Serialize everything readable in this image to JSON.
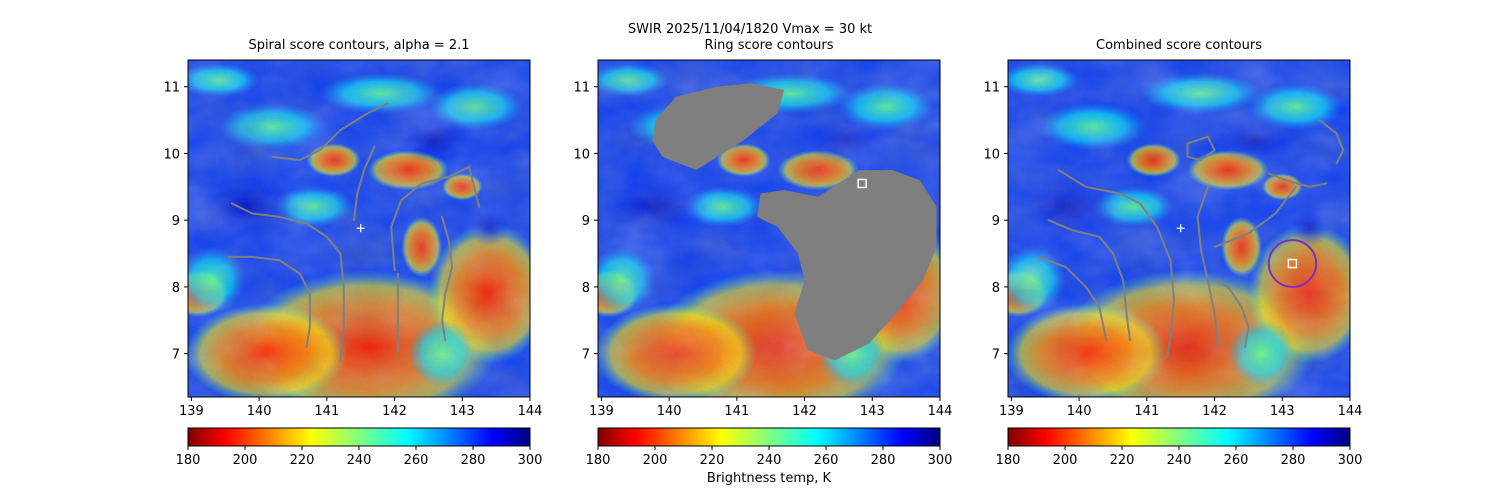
{
  "figure": {
    "suptitle": "SWIR  2025/11/04/1820    Vmax = 30 kt",
    "colorbar_label": "Brightness temp, K",
    "colors": {
      "contour": "#808080",
      "mask": "#7f7f7f",
      "center_marker": "#ffffff",
      "ring": "#7b2fbe"
    }
  },
  "chart_data": [
    {
      "type": "heatmap",
      "title": "Spiral score contours, alpha =  2.1",
      "xlim": [
        138.95,
        144.0
      ],
      "ylim": [
        6.35,
        11.4
      ],
      "xticks": [
        "139",
        "140",
        "141",
        "142",
        "143",
        "144"
      ],
      "yticks": [
        "7",
        "8",
        "9",
        "10",
        "11"
      ],
      "colorbar": {
        "min": 180,
        "max": 300,
        "cmap": "jet_r",
        "ticks": [
          "180",
          "200",
          "220",
          "240",
          "260",
          "280",
          "300"
        ]
      },
      "markers": [
        {
          "shape": "plus",
          "x": 141.5,
          "y": 8.88
        }
      ],
      "contours": [
        [
          [
            140.2,
            9.95
          ],
          [
            140.6,
            9.9
          ],
          [
            140.9,
            10.05
          ],
          [
            141.2,
            10.35
          ],
          [
            141.6,
            10.6
          ],
          [
            141.9,
            10.75
          ]
        ],
        [
          [
            139.6,
            9.25
          ],
          [
            139.9,
            9.1
          ],
          [
            140.3,
            9.05
          ],
          [
            140.7,
            8.95
          ],
          [
            141.0,
            8.75
          ],
          [
            141.2,
            8.5
          ],
          [
            141.25,
            8.0
          ],
          [
            141.25,
            7.4
          ],
          [
            141.2,
            6.9
          ]
        ],
        [
          [
            139.55,
            8.45
          ],
          [
            139.9,
            8.45
          ],
          [
            140.3,
            8.4
          ],
          [
            140.6,
            8.2
          ],
          [
            140.75,
            7.9
          ],
          [
            140.75,
            7.4
          ],
          [
            140.7,
            7.1
          ]
        ],
        [
          [
            141.7,
            10.1
          ],
          [
            141.55,
            9.75
          ],
          [
            141.45,
            9.4
          ],
          [
            141.4,
            9.0
          ]
        ],
        [
          [
            142.0,
            8.25
          ],
          [
            141.95,
            8.9
          ],
          [
            142.1,
            9.3
          ],
          [
            142.4,
            9.55
          ],
          [
            142.8,
            9.65
          ],
          [
            143.1,
            9.8
          ]
        ],
        [
          [
            142.05,
            8.2
          ],
          [
            142.05,
            7.6
          ],
          [
            142.05,
            7.0
          ]
        ],
        [
          [
            142.7,
            9.05
          ],
          [
            142.8,
            8.7
          ],
          [
            142.85,
            8.3
          ],
          [
            142.75,
            7.9
          ],
          [
            142.7,
            7.5
          ],
          [
            142.75,
            7.2
          ]
        ],
        [
          [
            143.1,
            9.8
          ],
          [
            143.25,
            9.2
          ]
        ]
      ]
    },
    {
      "type": "heatmap",
      "title": "Ring score contours",
      "xlim": [
        138.95,
        144.0
      ],
      "ylim": [
        6.35,
        11.4
      ],
      "xticks": [
        "139",
        "140",
        "141",
        "142",
        "143",
        "144"
      ],
      "yticks": [
        "7",
        "8",
        "9",
        "10",
        "11"
      ],
      "colorbar": {
        "min": 180,
        "max": 300,
        "cmap": "jet_r",
        "ticks": [
          "180",
          "200",
          "220",
          "240",
          "260",
          "280",
          "300"
        ]
      },
      "markers": [
        {
          "shape": "square",
          "x": 142.85,
          "y": 9.55
        }
      ],
      "filled_regions": [
        [
          [
            139.8,
            10.5
          ],
          [
            140.1,
            10.85
          ],
          [
            140.7,
            11.0
          ],
          [
            141.2,
            11.05
          ],
          [
            141.7,
            10.95
          ],
          [
            141.6,
            10.6
          ],
          [
            141.1,
            10.2
          ],
          [
            140.4,
            9.75
          ],
          [
            139.9,
            9.95
          ],
          [
            139.75,
            10.2
          ]
        ],
        [
          [
            142.2,
            9.35
          ],
          [
            142.8,
            9.75
          ],
          [
            143.3,
            9.75
          ],
          [
            143.7,
            9.6
          ],
          [
            143.95,
            9.2
          ],
          [
            143.95,
            8.6
          ],
          [
            143.75,
            8.1
          ],
          [
            143.35,
            7.6
          ],
          [
            142.95,
            7.15
          ],
          [
            142.45,
            6.9
          ],
          [
            142.05,
            7.05
          ],
          [
            141.85,
            7.6
          ],
          [
            142.0,
            8.1
          ],
          [
            141.9,
            8.5
          ],
          [
            141.6,
            8.9
          ],
          [
            141.3,
            9.05
          ],
          [
            141.35,
            9.4
          ],
          [
            141.7,
            9.45
          ]
        ]
      ]
    },
    {
      "type": "heatmap",
      "title": "Combined score contours",
      "xlim": [
        138.95,
        144.0
      ],
      "ylim": [
        6.35,
        11.4
      ],
      "xticks": [
        "139",
        "140",
        "141",
        "142",
        "143",
        "144"
      ],
      "yticks": [
        "7",
        "8",
        "9",
        "10",
        "11"
      ],
      "colorbar": {
        "min": 180,
        "max": 300,
        "cmap": "jet_r",
        "ticks": [
          "180",
          "200",
          "220",
          "240",
          "260",
          "280",
          "300"
        ]
      },
      "markers": [
        {
          "shape": "plus",
          "x": 141.5,
          "y": 8.88
        },
        {
          "shape": "square",
          "x": 143.15,
          "y": 8.35
        }
      ],
      "ring": {
        "x": 143.15,
        "y": 8.35,
        "r": 0.35
      },
      "contours": [
        [
          [
            139.7,
            9.75
          ],
          [
            140.1,
            9.5
          ],
          [
            140.6,
            9.4
          ],
          [
            140.9,
            9.25
          ],
          [
            141.15,
            8.9
          ],
          [
            141.35,
            8.4
          ],
          [
            141.4,
            7.8
          ],
          [
            141.35,
            7.25
          ],
          [
            141.3,
            6.95
          ]
        ],
        [
          [
            139.55,
            9.0
          ],
          [
            139.9,
            8.85
          ],
          [
            140.3,
            8.75
          ],
          [
            140.5,
            8.5
          ],
          [
            140.65,
            8.1
          ],
          [
            140.7,
            7.6
          ],
          [
            140.75,
            7.2
          ]
        ],
        [
          [
            139.4,
            8.45
          ],
          [
            139.8,
            8.3
          ],
          [
            140.1,
            8.0
          ],
          [
            140.3,
            7.7
          ],
          [
            140.4,
            7.2
          ]
        ],
        [
          [
            141.9,
            9.5
          ],
          [
            141.75,
            9.05
          ],
          [
            141.8,
            8.55
          ],
          [
            141.9,
            8.1
          ],
          [
            142.0,
            7.6
          ],
          [
            142.05,
            7.1
          ]
        ],
        [
          [
            142.0,
            8.1
          ],
          [
            142.2,
            8.0
          ],
          [
            142.4,
            7.7
          ],
          [
            142.5,
            7.4
          ],
          [
            142.45,
            7.1
          ]
        ],
        [
          [
            142.8,
            9.7
          ],
          [
            143.05,
            9.6
          ],
          [
            143.4,
            9.5
          ],
          [
            143.65,
            9.55
          ]
        ],
        [
          [
            142.0,
            8.6
          ],
          [
            142.5,
            8.8
          ],
          [
            142.9,
            9.1
          ],
          [
            143.2,
            9.5
          ]
        ],
        [
          [
            143.55,
            10.5
          ],
          [
            143.8,
            10.3
          ],
          [
            143.9,
            10.05
          ],
          [
            143.8,
            9.85
          ]
        ],
        [
          [
            141.6,
            10.15
          ],
          [
            141.9,
            10.25
          ],
          [
            142.0,
            10.05
          ],
          [
            141.8,
            9.9
          ],
          [
            141.6,
            9.95
          ],
          [
            141.6,
            10.15
          ]
        ]
      ]
    }
  ]
}
